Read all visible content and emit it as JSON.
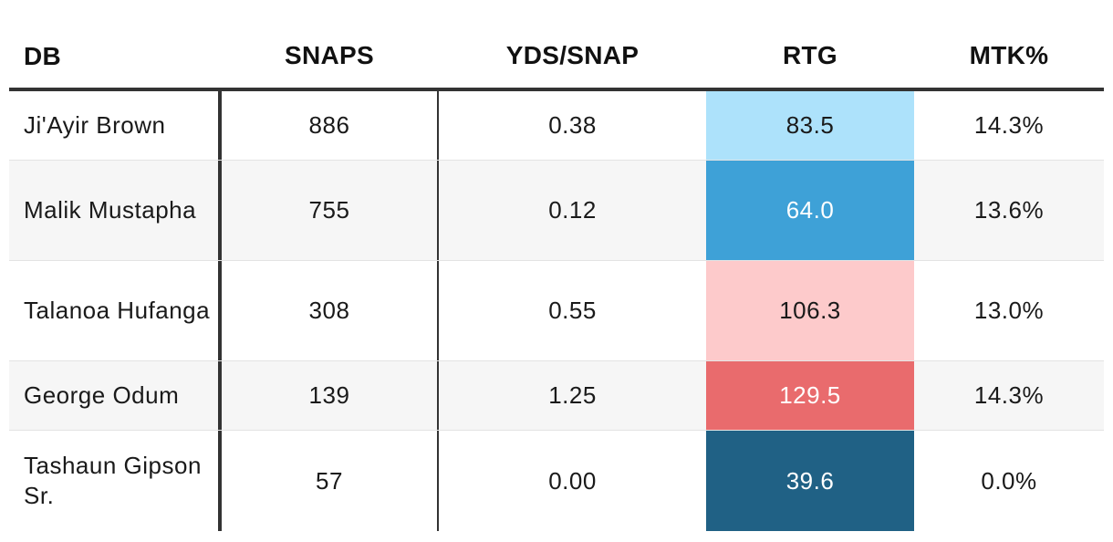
{
  "columns": {
    "db": "DB",
    "snaps": "SNAPS",
    "yds_per_snap": "YDS/SNAP",
    "rtg": "RTG",
    "mtk_pct": "MTK%"
  },
  "rows": [
    {
      "name": "Ji'Ayir Brown",
      "snaps": "886",
      "yds_per_snap": "0.38",
      "rtg": "83.5",
      "mtk_pct": "14.3%",
      "rtg_bg": "#ade2fb",
      "rtg_fg": "#1a1a1a"
    },
    {
      "name": "Malik Mustapha",
      "snaps": "755",
      "yds_per_snap": "0.12",
      "rtg": "64.0",
      "mtk_pct": "13.6%",
      "rtg_bg": "#3ea1d7",
      "rtg_fg": "#ffffff"
    },
    {
      "name": "Talanoa Hufanga",
      "snaps": "308",
      "yds_per_snap": "0.55",
      "rtg": "106.3",
      "mtk_pct": "13.0%",
      "rtg_bg": "#fdcacb",
      "rtg_fg": "#1a1a1a"
    },
    {
      "name": "George Odum",
      "snaps": "139",
      "yds_per_snap": "1.25",
      "rtg": "129.5",
      "mtk_pct": "14.3%",
      "rtg_bg": "#e96b6d",
      "rtg_fg": "#ffffff"
    },
    {
      "name": "Tashaun Gipson Sr.",
      "snaps": "57",
      "yds_per_snap": "0.00",
      "rtg": "39.6",
      "mtk_pct": "0.0%",
      "rtg_bg": "#206185",
      "rtg_fg": "#ffffff"
    }
  ]
}
